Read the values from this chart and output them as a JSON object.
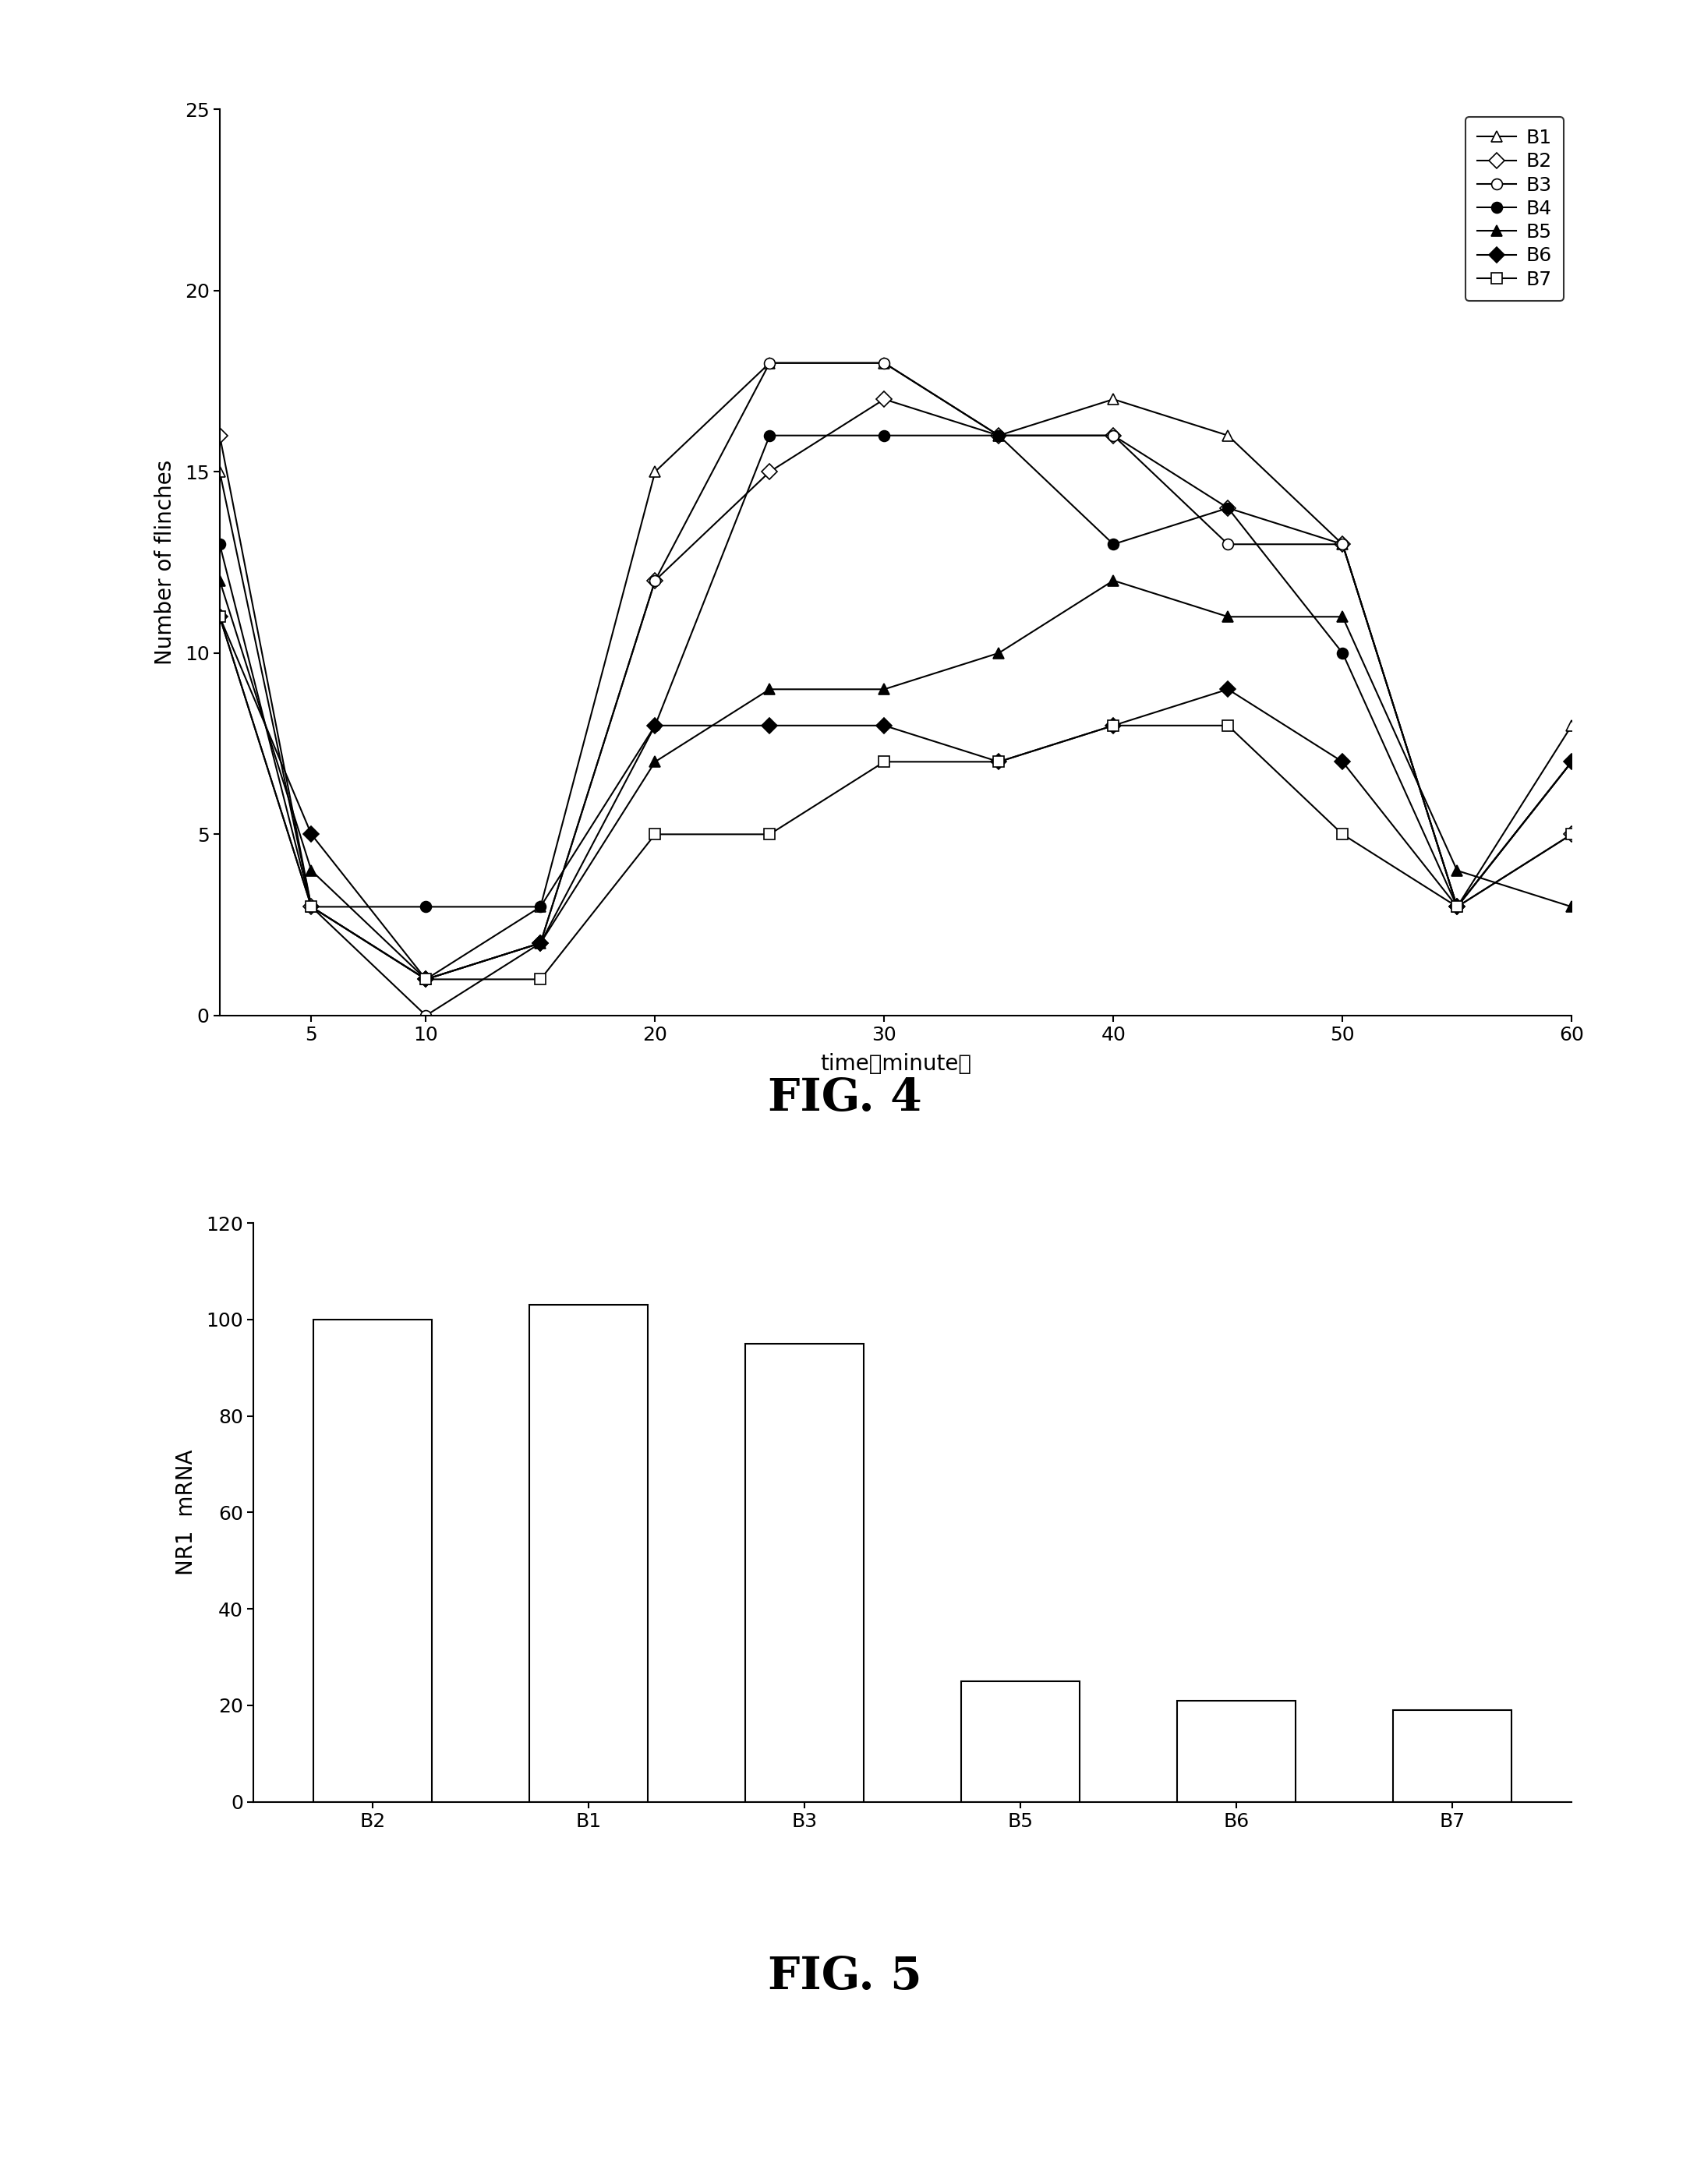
{
  "fig4": {
    "xlabel": "time（minute）",
    "ylabel": "Number of flinches",
    "xlim": [
      1,
      60
    ],
    "ylim": [
      0,
      25
    ],
    "xticks": [
      5,
      10,
      20,
      30,
      40,
      50,
      60
    ],
    "yticks": [
      0,
      5,
      10,
      15,
      20,
      25
    ],
    "time_points": [
      1,
      5,
      10,
      15,
      20,
      25,
      30,
      35,
      40,
      45,
      50,
      55,
      60
    ],
    "series": {
      "B1": {
        "values": [
          15,
          3,
          1,
          3,
          15,
          18,
          18,
          16,
          17,
          16,
          13,
          3,
          8
        ],
        "marker": "^",
        "fillstyle": "none"
      },
      "B2": {
        "values": [
          16,
          3,
          1,
          2,
          12,
          15,
          17,
          16,
          16,
          14,
          13,
          3,
          5
        ],
        "marker": "D",
        "fillstyle": "none"
      },
      "B3": {
        "values": [
          11,
          3,
          0,
          2,
          12,
          18,
          18,
          16,
          16,
          13,
          13,
          3,
          7
        ],
        "marker": "o",
        "fillstyle": "none"
      },
      "B4": {
        "values": [
          13,
          3,
          3,
          3,
          8,
          16,
          16,
          16,
          13,
          14,
          10,
          3,
          7
        ],
        "marker": "o",
        "fillstyle": "full"
      },
      "B5": {
        "values": [
          12,
          4,
          1,
          2,
          7,
          9,
          9,
          10,
          12,
          11,
          11,
          4,
          3
        ],
        "marker": "^",
        "fillstyle": "full"
      },
      "B6": {
        "values": [
          11,
          5,
          1,
          2,
          8,
          8,
          8,
          7,
          8,
          9,
          7,
          3,
          7
        ],
        "marker": "D",
        "fillstyle": "full"
      },
      "B7": {
        "values": [
          11,
          3,
          1,
          1,
          5,
          5,
          7,
          7,
          8,
          8,
          5,
          3,
          5
        ],
        "marker": "s",
        "fillstyle": "none"
      }
    },
    "series_order": [
      "B1",
      "B2",
      "B3",
      "B4",
      "B5",
      "B6",
      "B7"
    ]
  },
  "fig4_label": "FIG. 4",
  "fig5_label": "FIG. 5",
  "fig5": {
    "ylabel": "NR1  mRNA",
    "categories": [
      "B2",
      "B1",
      "B3",
      "B5",
      "B6",
      "B7"
    ],
    "values": [
      100,
      103,
      95,
      25,
      21,
      19
    ],
    "ylim": [
      0,
      120
    ],
    "yticks": [
      0,
      20,
      40,
      60,
      80,
      100,
      120
    ]
  },
  "background_color": "#ffffff",
  "linewidth": 1.5,
  "markersize": 10,
  "tick_fontsize": 18,
  "label_fontsize": 20,
  "figlabel_fontsize": 42
}
